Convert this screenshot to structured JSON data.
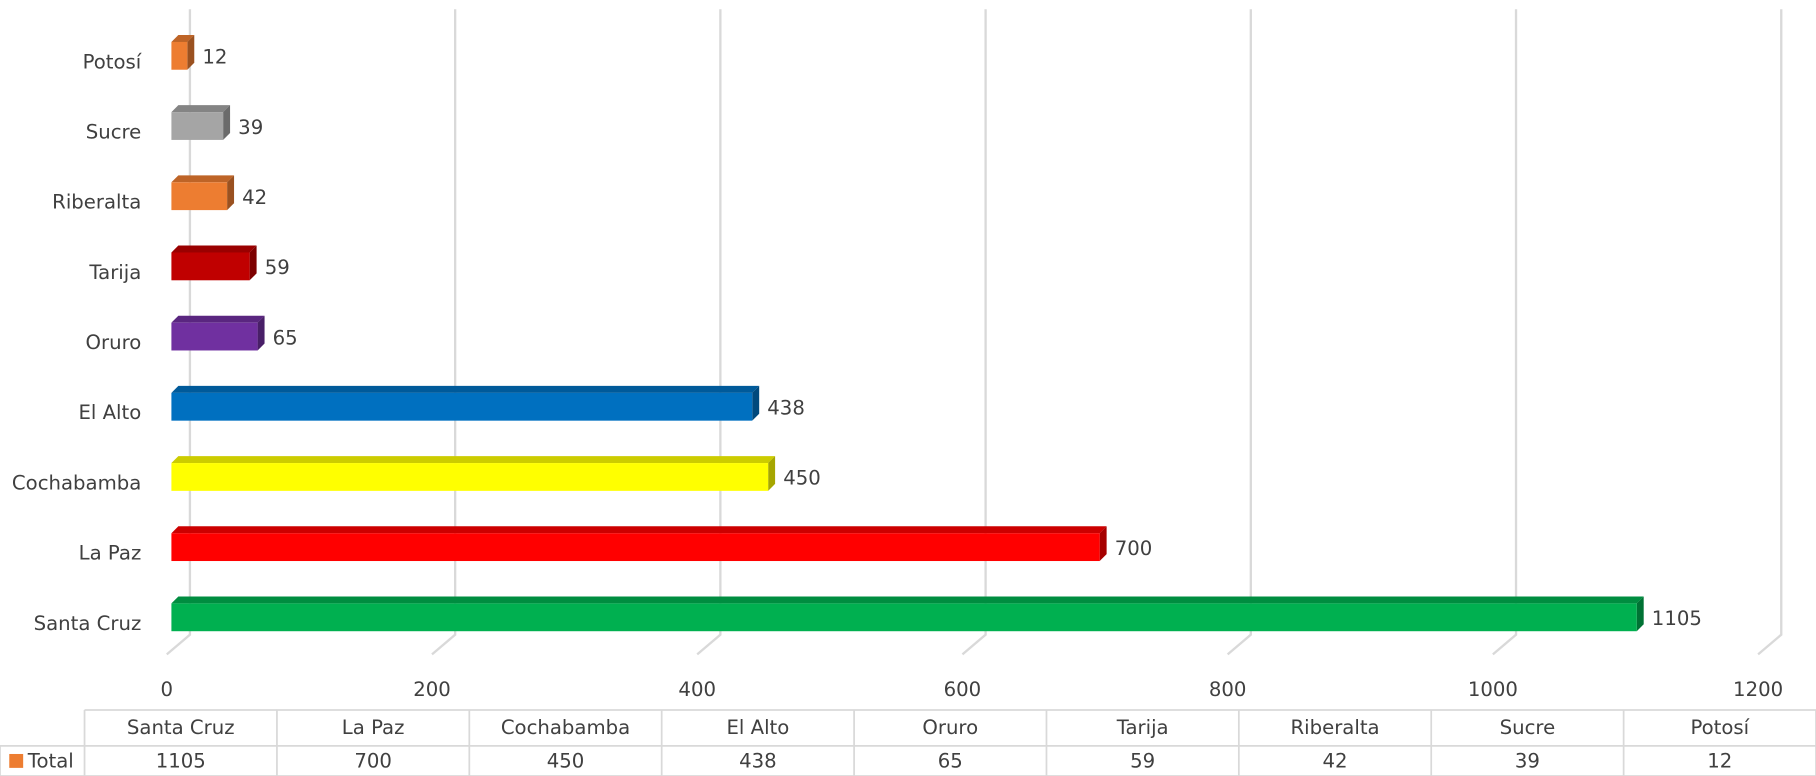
{
  "chart_data": {
    "type": "bar",
    "orientation": "horizontal",
    "categories": [
      "Santa Cruz",
      "La Paz",
      "Cochabamba",
      "El Alto",
      "Oruro",
      "Tarija",
      "Riberalta",
      "Sucre",
      "Potosí"
    ],
    "series": [
      {
        "name": "Total",
        "color": "#ed7d31",
        "values": [
          1105,
          700,
          450,
          438,
          65,
          59,
          42,
          39,
          12
        ],
        "colors": [
          "#00b050",
          "#ff0000",
          "#ffff00",
          "#0070c0",
          "#7030a0",
          "#c00000",
          "#ed7d31",
          "#a5a5a5",
          "#ed7d31"
        ]
      }
    ],
    "xlim": [
      0,
      1200
    ],
    "xticks": [
      0,
      200,
      400,
      600,
      800,
      1000,
      1200
    ],
    "grid": true,
    "data_labels": true,
    "data_table": true
  }
}
